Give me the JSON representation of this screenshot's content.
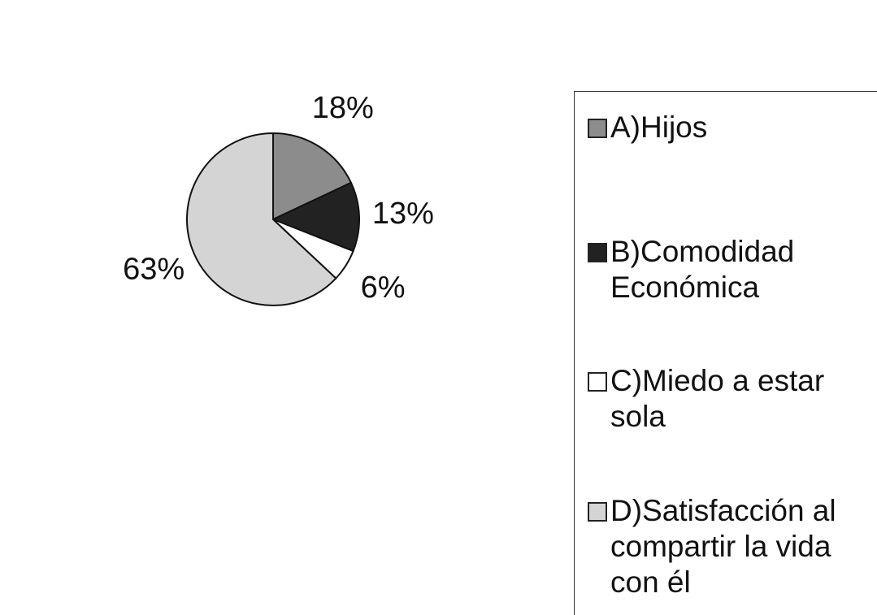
{
  "chart_data": {
    "type": "pie",
    "categories": [
      "A)Hijos",
      "B)Comodidad Económica",
      "C)Miedo a estar sola",
      "D)Satisfacción al compartir la vida con él"
    ],
    "values": [
      18,
      13,
      6,
      63
    ],
    "value_labels": [
      "18%",
      "13%",
      "6%",
      "63%"
    ],
    "colors": [
      "#8c8c8c",
      "#222222",
      "#ffffff",
      "#d4d4d4"
    ],
    "legend": "right"
  }
}
